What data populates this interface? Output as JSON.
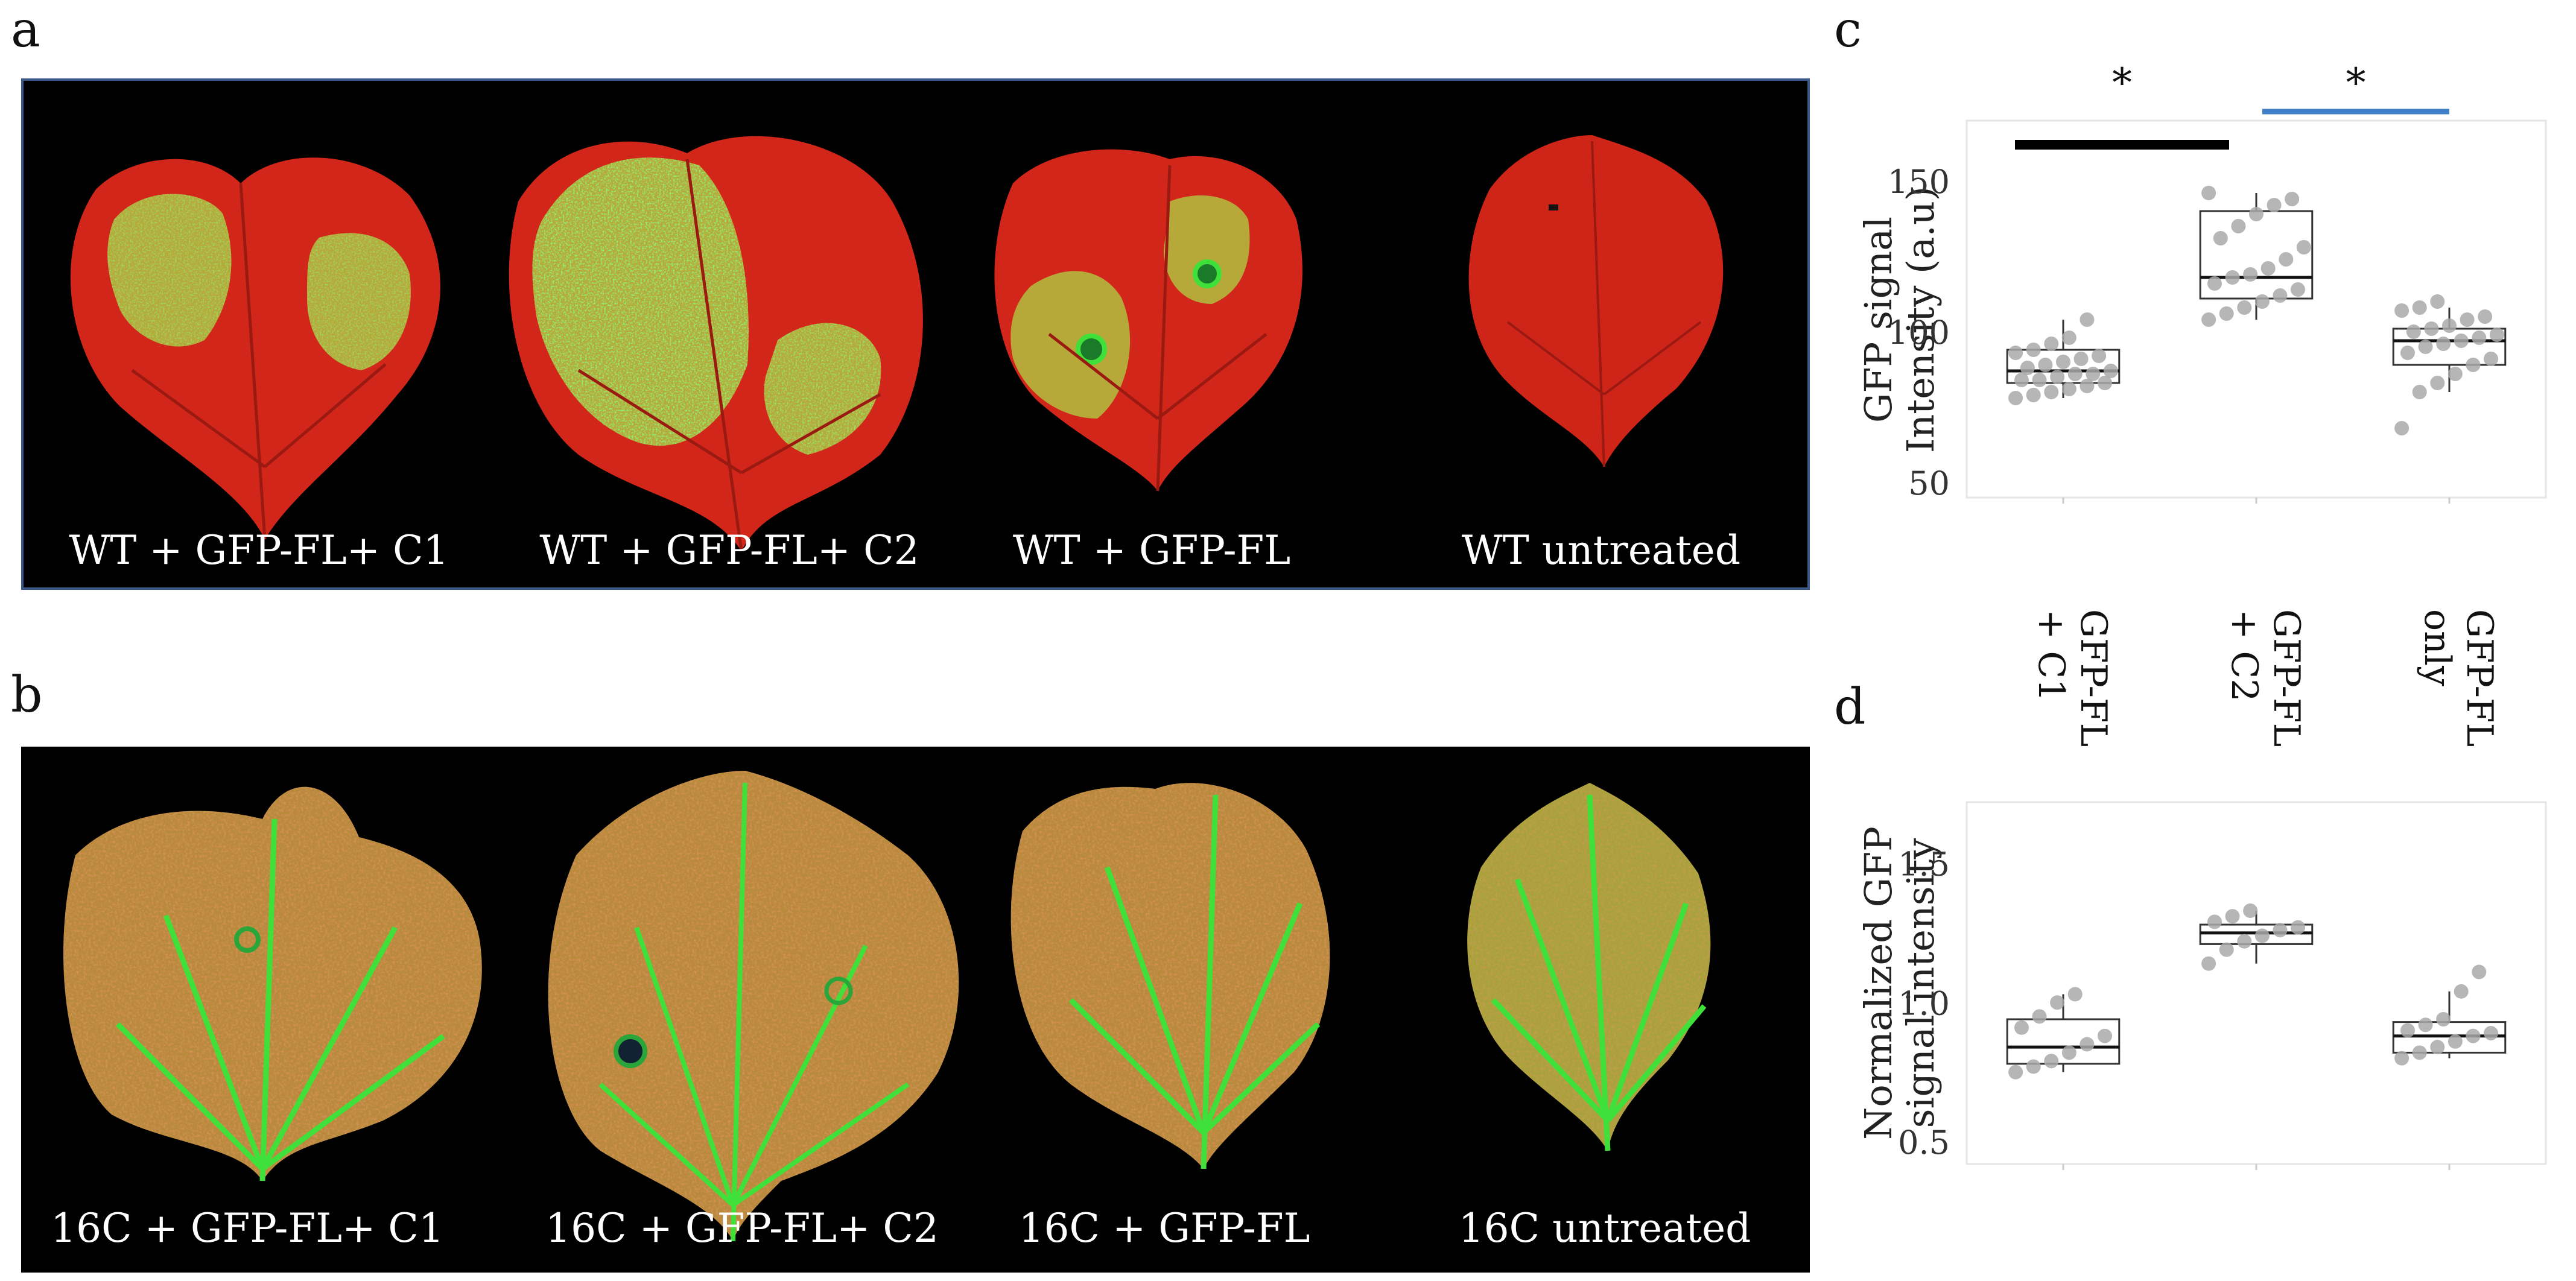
{
  "panels": {
    "a": {
      "letter": "a",
      "captions": [
        "WT +  GFP-FL+ C1",
        "WT +  GFP-FL+ C2",
        "WT +  GFP-FL",
        "WT untreated"
      ]
    },
    "b": {
      "letter": "b",
      "captions": [
        "16C +  GFP-FL+ C1",
        "16C +  GFP-FL+ C2",
        "16C +  GFP-FL",
        "16C untreated"
      ]
    },
    "c": {
      "letter": "c"
    },
    "d": {
      "letter": "d"
    }
  },
  "colors": {
    "leaf_red": "#d2261a",
    "leaf_gfp_yellow": "#b7a83a",
    "leaf_gfp_green": "#3fe03a",
    "leaf_16c_base": "#b88a3c",
    "box_points": "#a9a9a9",
    "sig_bar_black": "#000000",
    "sig_bar_blue": "#3f7fc8"
  },
  "chart_data": [
    {
      "type": "box",
      "panel": "c",
      "ylabel_line1": "GFP signal",
      "ylabel_line2": "Intensity (a.u)",
      "ylim": [
        45,
        170
      ],
      "yticks": [
        50,
        100,
        150
      ],
      "grid": false,
      "categories": [
        "GFP-FL + C1",
        "GFP-FL + C2",
        "GFP-FL only"
      ],
      "boxes": [
        {
          "q1": 83,
          "median": 87,
          "q3": 94,
          "lower": 78,
          "upper": 104,
          "points": [
            78,
            79,
            80,
            81,
            82,
            83,
            84,
            84,
            85,
            86,
            86,
            87,
            88,
            89,
            90,
            91,
            92,
            93,
            94,
            96,
            98,
            104
          ]
        },
        {
          "q1": 111,
          "median": 118,
          "q3": 140,
          "lower": 104,
          "upper": 146,
          "points": [
            104,
            106,
            108,
            110,
            112,
            114,
            116,
            118,
            119,
            121,
            124,
            128,
            131,
            135,
            139,
            142,
            144,
            146
          ]
        },
        {
          "q1": 89,
          "median": 97,
          "q3": 101,
          "lower": 80,
          "upper": 108,
          "points": [
            68,
            80,
            83,
            86,
            89,
            91,
            93,
            95,
            96,
            97,
            98,
            99,
            100,
            101,
            102,
            104,
            105,
            107,
            108,
            110
          ]
        }
      ],
      "significance": [
        {
          "from": 0,
          "to": 1,
          "label": "*",
          "color": "#000000",
          "level": 160
        },
        {
          "from": 1,
          "to": 2,
          "label": "*",
          "color": "#3f7fc8",
          "level": 172
        }
      ]
    },
    {
      "type": "box",
      "panel": "d",
      "ylabel_line1": "Normalized GFP",
      "ylabel_line2": "signal intensity",
      "ylim": [
        0.42,
        1.72
      ],
      "yticks": [
        0.5,
        1.0,
        1.5
      ],
      "ytick_labels": [
        "0.5",
        "1.0",
        "1.5"
      ],
      "grid": false,
      "categories": [
        "GFP-FL + C1",
        "GFP-FL + C2",
        "GFP-FL only"
      ],
      "category_label_lines": [
        [
          "GFP-FL",
          "+ C1"
        ],
        [
          "GFP-FL",
          "+ C2"
        ],
        [
          "GFP-FL",
          "only"
        ]
      ],
      "boxes": [
        {
          "q1": 0.78,
          "median": 0.84,
          "q3": 0.94,
          "lower": 0.75,
          "upper": 1.03,
          "points": [
            0.75,
            0.77,
            0.79,
            0.82,
            0.85,
            0.88,
            0.91,
            0.95,
            1.0,
            1.03
          ]
        },
        {
          "q1": 1.21,
          "median": 1.25,
          "q3": 1.28,
          "lower": 1.14,
          "upper": 1.33,
          "points": [
            1.14,
            1.19,
            1.22,
            1.24,
            1.26,
            1.27,
            1.29,
            1.31,
            1.33
          ]
        },
        {
          "q1": 0.82,
          "median": 0.88,
          "q3": 0.93,
          "lower": 0.8,
          "upper": 1.04,
          "points": [
            0.8,
            0.82,
            0.84,
            0.86,
            0.88,
            0.89,
            0.9,
            0.92,
            0.94,
            1.04,
            1.11
          ]
        }
      ]
    }
  ]
}
